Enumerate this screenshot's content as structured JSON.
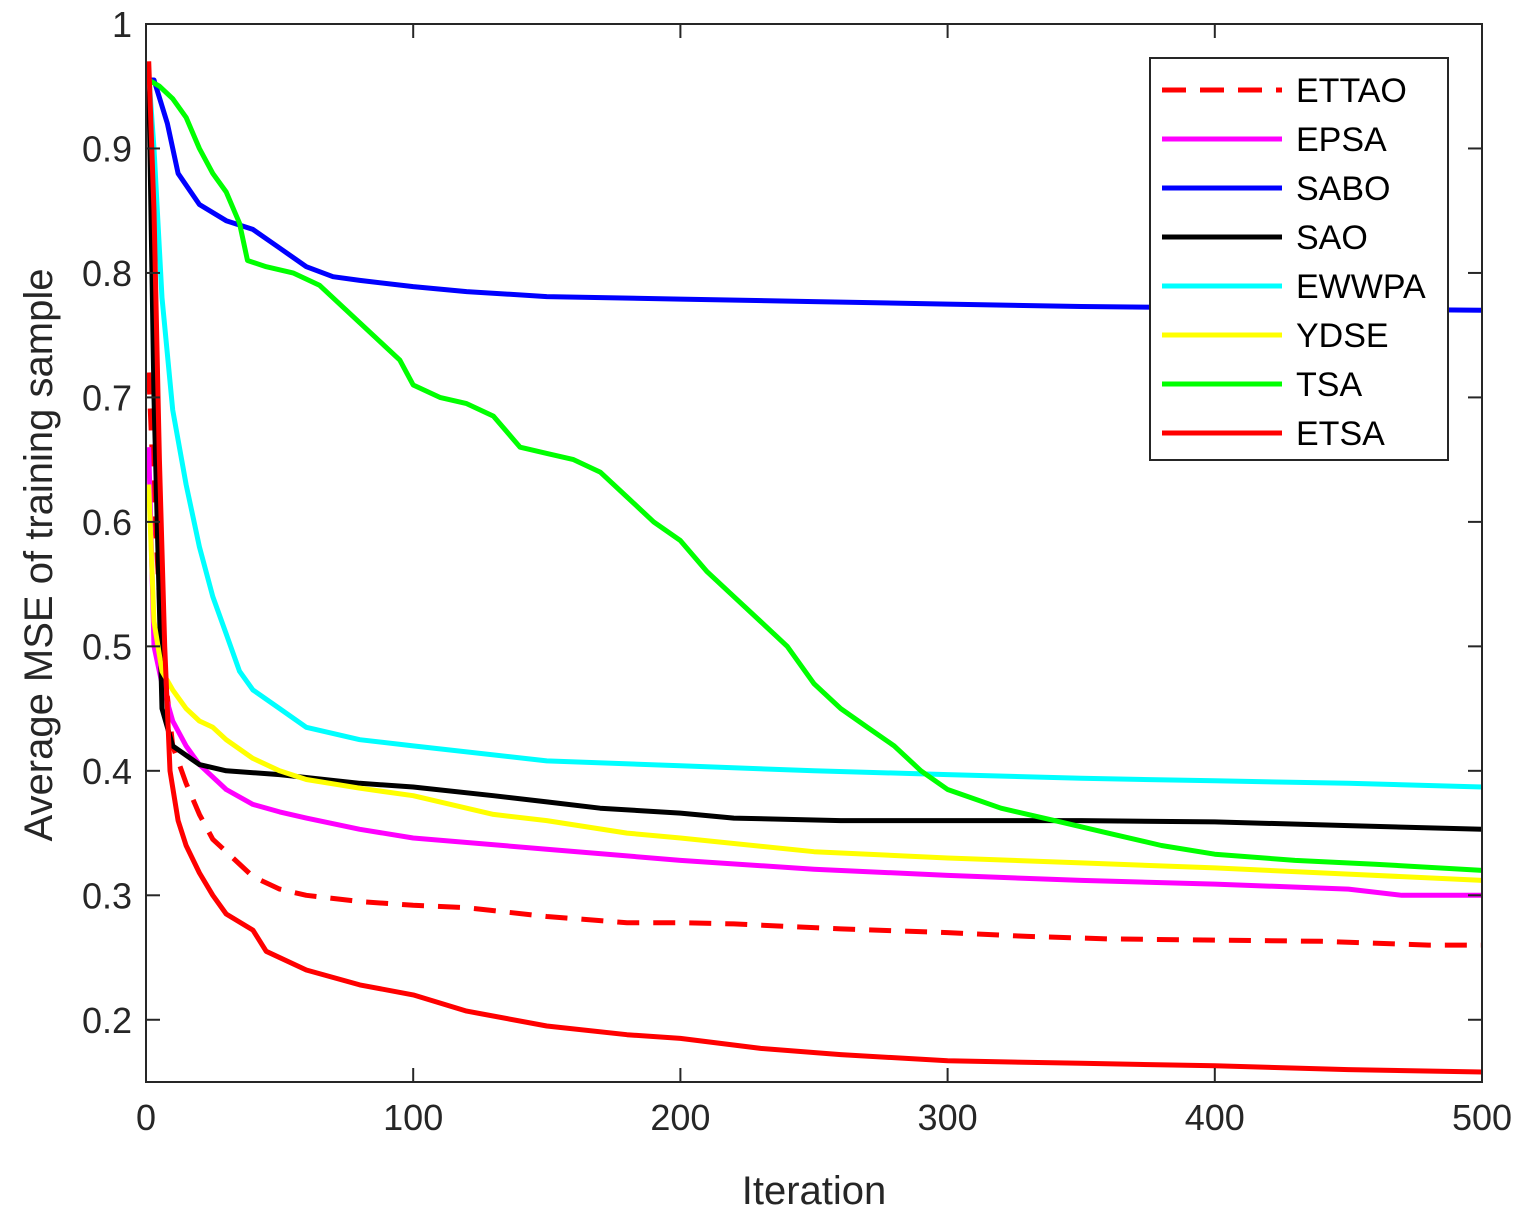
{
  "chart_data": {
    "type": "line",
    "title": "",
    "xlabel": "Iteration",
    "ylabel": "Average MSE of training sample",
    "xlim": [
      0,
      500
    ],
    "ylim": [
      0.15,
      1.0
    ],
    "xticks": [
      "0",
      "100",
      "200",
      "300",
      "400",
      "500"
    ],
    "yticks": [
      "0.2",
      "0.3",
      "0.4",
      "0.5",
      "0.6",
      "0.7",
      "0.8",
      "0.9",
      "1"
    ],
    "grid": false,
    "legend_position": "top-right",
    "series": [
      {
        "name": "ETTAO",
        "color": "#ff0000",
        "dash": "dashed",
        "x": [
          1,
          3,
          6,
          10,
          15,
          20,
          25,
          30,
          40,
          50,
          60,
          80,
          100,
          120,
          150,
          180,
          200,
          220,
          260,
          300,
          330,
          360,
          400,
          440,
          480,
          500
        ],
        "y": [
          0.72,
          0.62,
          0.5,
          0.42,
          0.39,
          0.365,
          0.345,
          0.335,
          0.315,
          0.305,
          0.3,
          0.295,
          0.292,
          0.29,
          0.283,
          0.278,
          0.278,
          0.277,
          0.273,
          0.27,
          0.267,
          0.265,
          0.264,
          0.263,
          0.26,
          0.26
        ]
      },
      {
        "name": "EPSA",
        "color": "#ff00ff",
        "dash": "solid",
        "x": [
          1,
          3,
          6,
          10,
          15,
          20,
          30,
          40,
          50,
          60,
          80,
          100,
          150,
          200,
          250,
          300,
          350,
          400,
          450,
          470,
          500
        ],
        "y": [
          0.66,
          0.5,
          0.47,
          0.44,
          0.42,
          0.405,
          0.385,
          0.373,
          0.367,
          0.362,
          0.353,
          0.346,
          0.337,
          0.328,
          0.321,
          0.316,
          0.312,
          0.309,
          0.305,
          0.3,
          0.3
        ]
      },
      {
        "name": "SABO",
        "color": "#0000ff",
        "dash": "solid",
        "x": [
          0,
          3,
          8,
          12,
          20,
          30,
          40,
          50,
          60,
          70,
          80,
          100,
          120,
          150,
          200,
          250,
          300,
          350,
          400,
          450,
          500
        ],
        "y": [
          0.955,
          0.955,
          0.92,
          0.88,
          0.855,
          0.842,
          0.835,
          0.82,
          0.805,
          0.797,
          0.794,
          0.789,
          0.785,
          0.781,
          0.779,
          0.777,
          0.775,
          0.773,
          0.772,
          0.771,
          0.77
        ]
      },
      {
        "name": "SAO",
        "color": "#000000",
        "dash": "solid",
        "x": [
          1,
          3,
          6,
          10,
          20,
          30,
          50,
          80,
          100,
          130,
          150,
          170,
          200,
          220,
          260,
          300,
          350,
          400,
          450,
          500
        ],
        "y": [
          0.96,
          0.7,
          0.45,
          0.42,
          0.405,
          0.4,
          0.397,
          0.39,
          0.387,
          0.38,
          0.375,
          0.37,
          0.366,
          0.362,
          0.36,
          0.36,
          0.36,
          0.359,
          0.356,
          0.353
        ]
      },
      {
        "name": "EWWPA",
        "color": "#00ffff",
        "dash": "solid",
        "x": [
          1,
          3,
          6,
          10,
          15,
          20,
          25,
          30,
          35,
          40,
          50,
          60,
          80,
          100,
          150,
          200,
          250,
          300,
          350,
          400,
          450,
          500
        ],
        "y": [
          0.96,
          0.9,
          0.78,
          0.69,
          0.63,
          0.58,
          0.54,
          0.51,
          0.48,
          0.465,
          0.45,
          0.435,
          0.425,
          0.42,
          0.408,
          0.404,
          0.4,
          0.397,
          0.394,
          0.392,
          0.39,
          0.387
        ]
      },
      {
        "name": "YDSE",
        "color": "#ffff00",
        "dash": "solid",
        "x": [
          1,
          3,
          6,
          10,
          15,
          20,
          25,
          30,
          40,
          50,
          60,
          80,
          100,
          130,
          150,
          180,
          200,
          250,
          300,
          350,
          400,
          450,
          500
        ],
        "y": [
          0.63,
          0.52,
          0.48,
          0.465,
          0.45,
          0.44,
          0.435,
          0.425,
          0.41,
          0.4,
          0.393,
          0.386,
          0.38,
          0.365,
          0.36,
          0.35,
          0.346,
          0.335,
          0.33,
          0.326,
          0.322,
          0.317,
          0.312
        ]
      },
      {
        "name": "TSA",
        "color": "#00ff00",
        "dash": "solid",
        "x": [
          1,
          5,
          10,
          15,
          20,
          25,
          30,
          35,
          38,
          45,
          55,
          65,
          75,
          85,
          95,
          100,
          110,
          120,
          130,
          140,
          150,
          160,
          170,
          180,
          190,
          200,
          210,
          220,
          230,
          240,
          250,
          260,
          270,
          280,
          290,
          300,
          320,
          340,
          360,
          380,
          400,
          430,
          460,
          500
        ],
        "y": [
          0.955,
          0.95,
          0.94,
          0.925,
          0.9,
          0.88,
          0.865,
          0.84,
          0.81,
          0.805,
          0.8,
          0.79,
          0.77,
          0.75,
          0.73,
          0.71,
          0.7,
          0.695,
          0.685,
          0.66,
          0.655,
          0.65,
          0.64,
          0.62,
          0.6,
          0.585,
          0.56,
          0.54,
          0.52,
          0.5,
          0.47,
          0.45,
          0.435,
          0.42,
          0.4,
          0.385,
          0.37,
          0.36,
          0.35,
          0.34,
          0.333,
          0.328,
          0.325,
          0.32
        ]
      },
      {
        "name": "ETSA",
        "color": "#ff0000",
        "dash": "solid",
        "x": [
          1,
          3,
          5,
          7,
          9,
          12,
          15,
          20,
          25,
          30,
          40,
          45,
          60,
          80,
          100,
          120,
          150,
          180,
          200,
          230,
          260,
          300,
          350,
          400,
          450,
          500
        ],
        "y": [
          0.97,
          0.85,
          0.65,
          0.5,
          0.4,
          0.36,
          0.34,
          0.318,
          0.3,
          0.285,
          0.272,
          0.255,
          0.24,
          0.228,
          0.22,
          0.207,
          0.195,
          0.188,
          0.185,
          0.177,
          0.172,
          0.167,
          0.165,
          0.163,
          0.16,
          0.158
        ]
      }
    ]
  }
}
